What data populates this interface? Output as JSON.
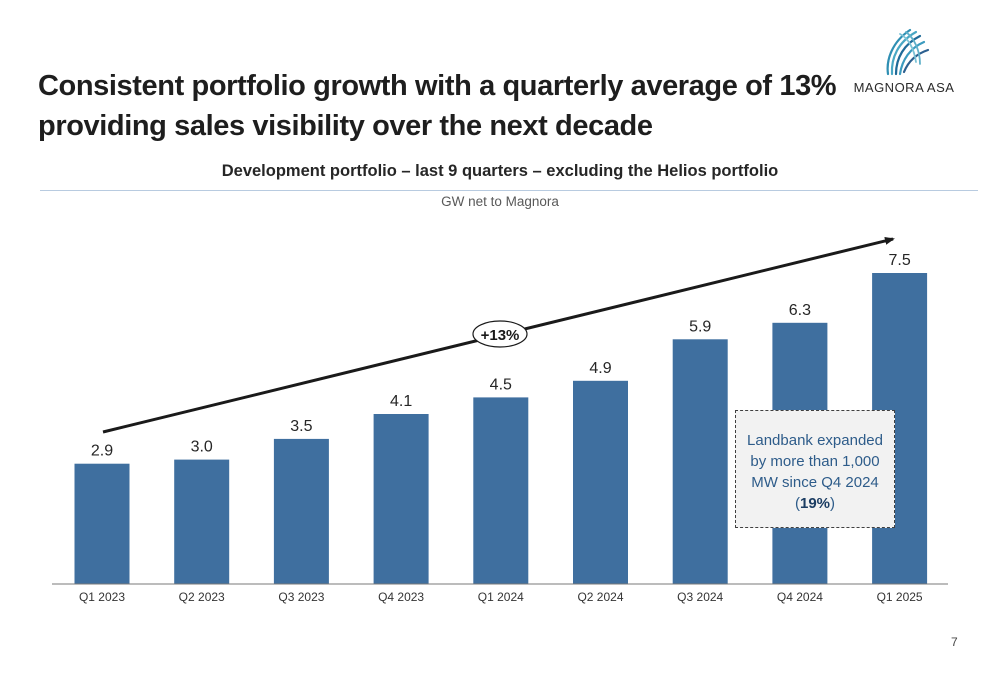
{
  "slide": {
    "title_line1": "Consistent portfolio growth with a quarterly average of 13%",
    "title_line2": "providing sales visibility over the next decade",
    "page_number": "7"
  },
  "logo": {
    "name": "MAGNORA ASA",
    "icon": "magnora-wing-logo"
  },
  "callout": {
    "line1": "Landbank expanded",
    "line2": "by more than 1,000",
    "line3": "MW since Q4 2024",
    "pct": "19%"
  },
  "chart_data": {
    "type": "bar",
    "title": "Development portfolio – last 9 quarters – excluding the Helios portfolio",
    "ylabel": "GW net to Magnora",
    "categories": [
      "Q1 2023",
      "Q2 2023",
      "Q3 2023",
      "Q4 2023",
      "Q1 2024",
      "Q2 2024",
      "Q3 2024",
      "Q4 2024",
      "Q1 2025"
    ],
    "values": [
      2.9,
      3.0,
      3.5,
      4.1,
      4.5,
      4.9,
      5.9,
      6.3,
      7.5
    ],
    "value_labels": [
      "2.9",
      "3.0",
      "3.5",
      "4.1",
      "4.5",
      "4.9",
      "5.9",
      "6.3",
      "7.5"
    ],
    "ylim": [
      0,
      7.5
    ],
    "bar_color": "#3f6f9f",
    "trend_label": "+13%",
    "grid": false
  }
}
